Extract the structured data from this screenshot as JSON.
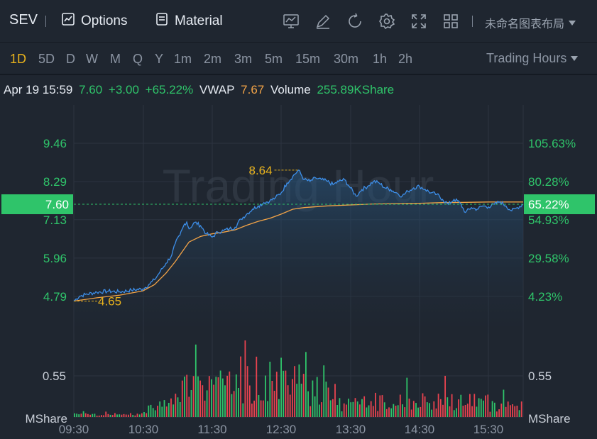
{
  "header": {
    "symbol": "SEV",
    "options_label": "Options",
    "material_label": "Material",
    "layout_label": "未命名图表布局",
    "tools": [
      "chart-indicator-icon",
      "draw-pen-icon",
      "refresh-icon",
      "settings-gear-icon",
      "fullscreen-icon",
      "grid-layout-icon"
    ]
  },
  "timeframes": {
    "items": [
      "1D",
      "5D",
      "D",
      "W",
      "M",
      "Q",
      "Y",
      "1m",
      "2m",
      "3m",
      "5m",
      "15m",
      "30m",
      "1h",
      "2h"
    ],
    "active": "1D",
    "hours_label": "Trading Hours"
  },
  "info": {
    "datetime": "Apr 19 15:59",
    "price": "7.60",
    "change": "+3.00",
    "change_pct": "+65.22%",
    "vwap_label": "VWAP",
    "vwap": "7.67",
    "volume_label": "Volume",
    "volume": "255.89KShare"
  },
  "colors": {
    "up": "#2fc46a",
    "down": "#e8434f",
    "price_line": "#3d8ee8",
    "vwap_line": "#f2a347",
    "highlight": "#e8b21c",
    "badge": "#2fc46a"
  },
  "chart_data": {
    "type": "line",
    "watermark": "Trading Hour",
    "price_axis": {
      "ticks": [
        "9.46",
        "8.29",
        "7.13",
        "5.96",
        "4.79"
      ],
      "tick_values": [
        9.46,
        8.29,
        7.13,
        5.96,
        4.79
      ],
      "current": "7.60",
      "current_value": 7.6
    },
    "pct_axis": {
      "ticks": [
        "105.63%",
        "80.28%",
        "54.93%",
        "29.58%",
        "4.23%"
      ],
      "current": "65.22%"
    },
    "volume_axis": {
      "tick": "0.55",
      "unit": "MShare"
    },
    "time_axis": [
      "09:30",
      "10:30",
      "11:30",
      "12:30",
      "13:30",
      "14:30",
      "15:30"
    ],
    "high_label": "8.64",
    "high_value": 8.64,
    "low_label": "4.65",
    "low_value": 4.65,
    "price": [
      [
        0,
        4.65
      ],
      [
        5,
        4.8
      ],
      [
        10,
        4.85
      ],
      [
        20,
        4.92
      ],
      [
        30,
        4.95
      ],
      [
        40,
        4.93
      ],
      [
        50,
        4.98
      ],
      [
        60,
        5.02
      ],
      [
        65,
        5.15
      ],
      [
        70,
        5.3
      ],
      [
        75,
        5.55
      ],
      [
        80,
        5.8
      ],
      [
        85,
        6.05
      ],
      [
        88,
        6.4
      ],
      [
        92,
        6.65
      ],
      [
        96,
        7.0
      ],
      [
        98,
        7.06
      ],
      [
        100,
        6.85
      ],
      [
        105,
        7.05
      ],
      [
        110,
        6.95
      ],
      [
        115,
        6.7
      ],
      [
        120,
        6.6
      ],
      [
        125,
        6.75
      ],
      [
        130,
        6.8
      ],
      [
        135,
        6.85
      ],
      [
        140,
        6.9
      ],
      [
        145,
        7.15
      ],
      [
        150,
        7.3
      ],
      [
        155,
        7.45
      ],
      [
        160,
        7.55
      ],
      [
        165,
        7.65
      ],
      [
        170,
        7.7
      ],
      [
        175,
        7.8
      ],
      [
        180,
        7.95
      ],
      [
        185,
        8.25
      ],
      [
        190,
        8.45
      ],
      [
        195,
        8.64
      ],
      [
        200,
        8.35
      ],
      [
        205,
        8.3
      ],
      [
        210,
        8.4
      ],
      [
        215,
        8.35
      ],
      [
        220,
        8.3
      ],
      [
        225,
        8.2
      ],
      [
        230,
        8.3
      ],
      [
        235,
        8.35
      ],
      [
        240,
        8.1
      ],
      [
        245,
        7.85
      ],
      [
        250,
        8.05
      ],
      [
        255,
        8.15
      ],
      [
        260,
        8.3
      ],
      [
        265,
        8.25
      ],
      [
        270,
        8.1
      ],
      [
        275,
        8.05
      ],
      [
        280,
        7.95
      ],
      [
        285,
        7.85
      ],
      [
        290,
        8.0
      ],
      [
        295,
        8.1
      ],
      [
        300,
        8.15
      ],
      [
        305,
        8.05
      ],
      [
        310,
        7.95
      ],
      [
        315,
        7.9
      ],
      [
        320,
        7.75
      ],
      [
        325,
        7.6
      ],
      [
        330,
        7.75
      ],
      [
        335,
        7.65
      ],
      [
        340,
        7.35
      ],
      [
        345,
        7.5
      ],
      [
        350,
        7.45
      ],
      [
        355,
        7.55
      ],
      [
        360,
        7.52
      ],
      [
        365,
        7.6
      ],
      [
        370,
        7.68
      ],
      [
        375,
        7.55
      ],
      [
        380,
        7.4
      ],
      [
        385,
        7.5
      ],
      [
        390,
        7.6
      ]
    ],
    "vwap": [
      [
        0,
        4.65
      ],
      [
        20,
        4.75
      ],
      [
        40,
        4.83
      ],
      [
        60,
        4.96
      ],
      [
        70,
        5.15
      ],
      [
        80,
        5.5
      ],
      [
        88,
        5.85
      ],
      [
        95,
        6.2
      ],
      [
        100,
        6.45
      ],
      [
        110,
        6.62
      ],
      [
        120,
        6.7
      ],
      [
        130,
        6.75
      ],
      [
        140,
        6.82
      ],
      [
        150,
        6.96
      ],
      [
        160,
        7.08
      ],
      [
        170,
        7.17
      ],
      [
        180,
        7.3
      ],
      [
        190,
        7.45
      ],
      [
        200,
        7.5
      ],
      [
        220,
        7.55
      ],
      [
        240,
        7.58
      ],
      [
        260,
        7.61
      ],
      [
        280,
        7.62
      ],
      [
        300,
        7.63
      ],
      [
        320,
        7.65
      ],
      [
        340,
        7.66
      ],
      [
        360,
        7.67
      ],
      [
        380,
        7.67
      ],
      [
        390,
        7.67
      ]
    ],
    "volume_max": 0.65
  }
}
